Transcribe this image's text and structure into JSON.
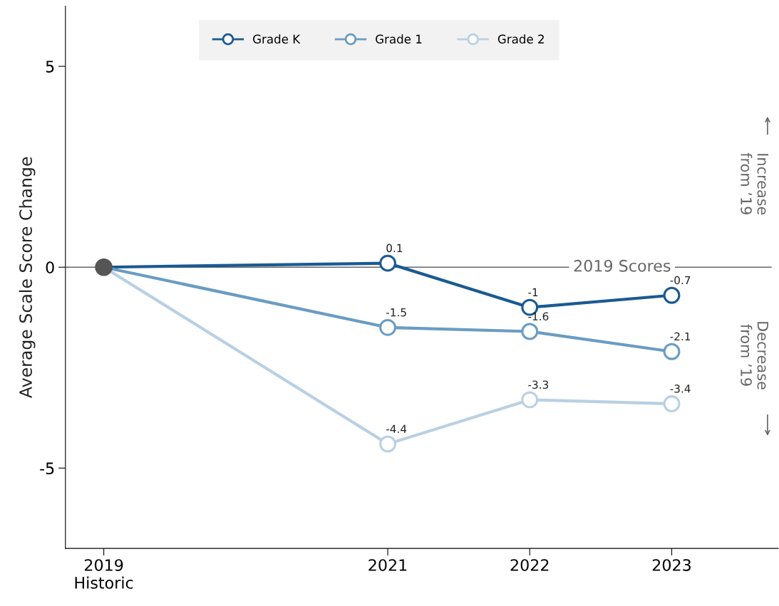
{
  "chart_data": {
    "type": "line",
    "ylabel": "Average Scale Score Change",
    "x": [
      2019,
      2021,
      2022,
      2023
    ],
    "xlim": [
      2018.73,
      2023.75
    ],
    "xticks": [
      {
        "value": 2019,
        "label": "2019\nHistoric"
      },
      2021,
      2022,
      2023
    ],
    "ylim": [
      -7,
      6.5
    ],
    "yticks": [
      -5,
      0,
      5
    ],
    "series": [
      {
        "name": "Grade K",
        "color": "#1a5a92",
        "values": [
          0,
          0.1,
          -1,
          -0.7
        ],
        "value_labels": [
          null,
          "0.1",
          "-1",
          "-0.7"
        ]
      },
      {
        "name": "Grade 1",
        "color": "#6a9cc3",
        "values": [
          0,
          -1.5,
          -1.6,
          -2.1
        ],
        "value_labels": [
          null,
          "-1.5",
          "-1.6",
          "-2.1"
        ]
      },
      {
        "name": "Grade 2",
        "color": "#b9d0e3",
        "values": [
          0,
          -4.4,
          -3.3,
          -3.4
        ],
        "value_labels": [
          null,
          "-4.4",
          "-3.3",
          "-3.4"
        ]
      },
      {
        "type": "scatter",
        "color": "#555555",
        "x": [
          2019
        ],
        "values": [
          0
        ]
      }
    ],
    "ref_lines": [
      {
        "axis": "y",
        "value": 0,
        "label": "2019 Scores",
        "color": "#666666"
      }
    ],
    "annotations": [
      "Increase from ’19",
      "Decrease from ’19"
    ],
    "marker": "circle",
    "legend": "top",
    "grid": false
  }
}
